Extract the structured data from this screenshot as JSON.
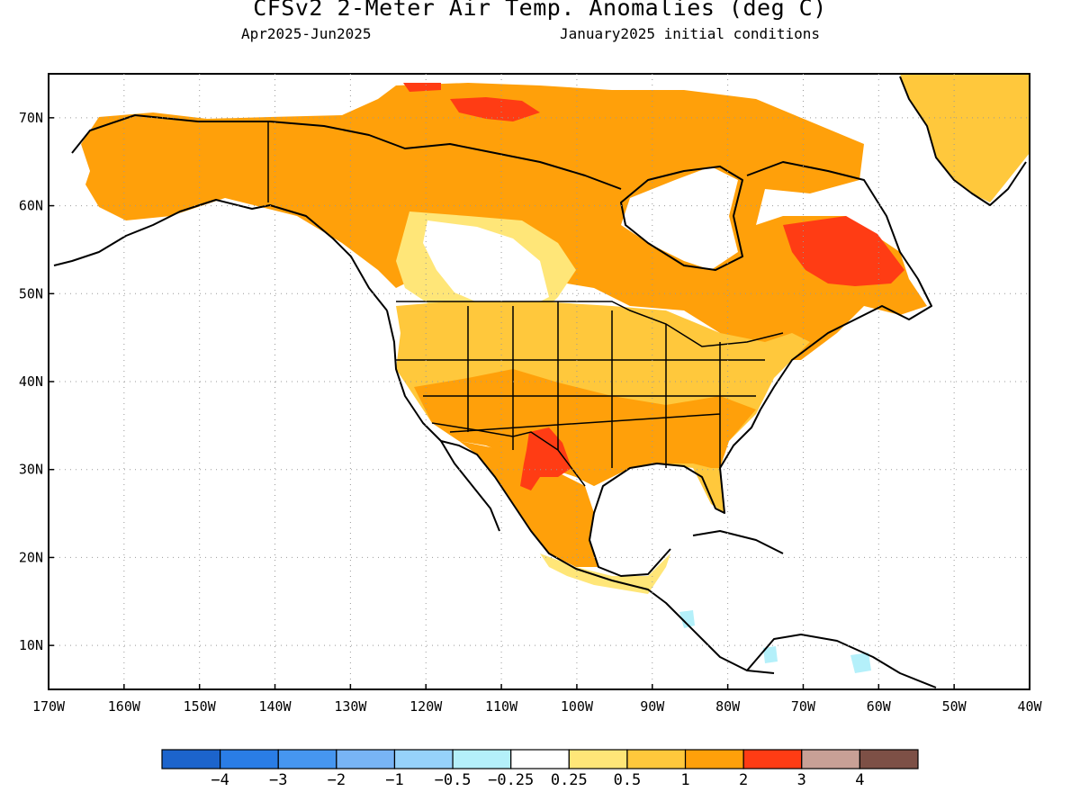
{
  "title": "CFSv2 2-Meter Air Temp. Anomalies (deg C)",
  "period": "Apr2025-Jun2025",
  "initial_conditions": "January2025 initial conditions",
  "lat_labels": [
    "70N",
    "60N",
    "50N",
    "40N",
    "30N",
    "20N",
    "10N"
  ],
  "lon_labels": [
    "170W",
    "160W",
    "150W",
    "140W",
    "130W",
    "120W",
    "110W",
    "100W",
    "90W",
    "80W",
    "70W",
    "60W",
    "50W",
    "40W"
  ],
  "colorbar": {
    "colors": [
      "#1c64cc",
      "#2a7de6",
      "#4696f0",
      "#78b4f5",
      "#96d2fa",
      "#b4f0fa",
      "#ffffff",
      "#ffe678",
      "#ffc83c",
      "#ffa00a",
      "#ff3c14",
      "#c8a096",
      "#7d5046"
    ],
    "labels": [
      "-4",
      "-3",
      "-2",
      "-1",
      "-0.5",
      "-0.25",
      "0.25",
      "0.5",
      "1",
      "2",
      "3",
      "4"
    ]
  },
  "map": {
    "region": "North America",
    "lat_range": [
      5,
      75
    ],
    "lon_range": [
      -170,
      -40
    ],
    "gridlines": "dotted",
    "anomaly_areas": [
      {
        "region": "Alaska and western Canada",
        "category": "1 to 2"
      },
      {
        "region": "Canadian Prairies",
        "category": "0.25 to 0.5"
      },
      {
        "region": "Quebec / Labrador",
        "category": "2 to 3"
      },
      {
        "region": "Texas / northern Mexico",
        "category": "2 to 3"
      },
      {
        "region": "Eastern United States",
        "category": "0.5 to 2"
      },
      {
        "region": "Central America",
        "category": "-0.25 to 0.25"
      }
    ]
  }
}
